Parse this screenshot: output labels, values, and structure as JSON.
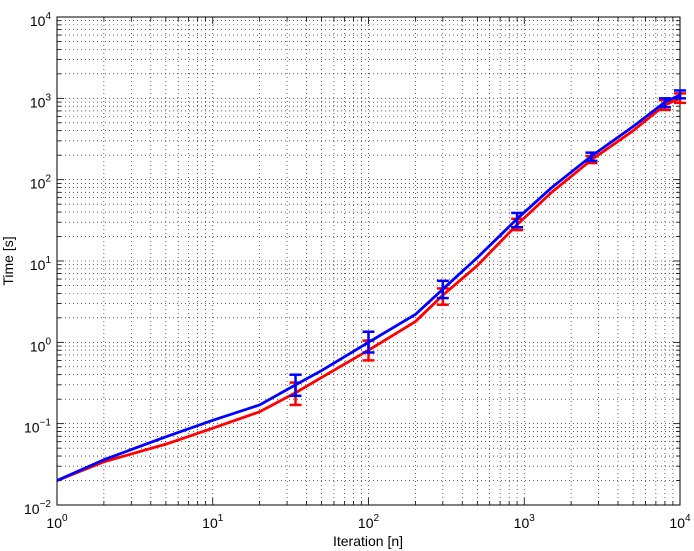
{
  "chart_data": {
    "type": "line",
    "xlabel": "Iteration [n]",
    "ylabel": "Time [s]",
    "xscale": "log",
    "yscale": "log",
    "grid": true,
    "minor_grid": true,
    "xlim": [
      1,
      10000
    ],
    "ylim": [
      0.01,
      10000
    ],
    "xticks": [
      {
        "value": 1,
        "label": "10",
        "exponent": "0"
      },
      {
        "value": 10,
        "label": "10",
        "exponent": "1"
      },
      {
        "value": 100,
        "label": "10",
        "exponent": "2"
      },
      {
        "value": 1000,
        "label": "10",
        "exponent": "3"
      },
      {
        "value": 10000,
        "label": "10",
        "exponent": "4"
      }
    ],
    "yticks": [
      {
        "value": 0.01,
        "label": "10",
        "exponent": "−2"
      },
      {
        "value": 0.1,
        "label": "10",
        "exponent": "−1"
      },
      {
        "value": 1,
        "label": "10",
        "exponent": "0"
      },
      {
        "value": 10,
        "label": "10",
        "exponent": "1"
      },
      {
        "value": 100,
        "label": "10",
        "exponent": "2"
      },
      {
        "value": 1000,
        "label": "10",
        "exponent": "3"
      },
      {
        "value": 10000,
        "label": "10",
        "exponent": "4"
      }
    ],
    "x": [
      1,
      2,
      5,
      10,
      20,
      34,
      50,
      100,
      200,
      300,
      500,
      900,
      1500,
      2700,
      5000,
      8000,
      10000
    ],
    "series": [
      {
        "color": "#ff0000",
        "values": [
          0.02,
          0.034,
          0.056,
          0.088,
          0.14,
          0.24,
          0.37,
          0.8,
          1.8,
          3.8,
          8.8,
          28,
          70,
          175,
          400,
          830,
          1000
        ],
        "err_low": [
          null,
          null,
          null,
          null,
          null,
          0.17,
          null,
          0.6,
          null,
          2.9,
          null,
          24,
          null,
          160,
          null,
          720,
          880
        ],
        "err_high": [
          null,
          null,
          null,
          null,
          null,
          0.32,
          null,
          1.05,
          null,
          4.6,
          null,
          33,
          null,
          195,
          null,
          950,
          1150
        ]
      },
      {
        "color": "#0000ff",
        "values": [
          0.02,
          0.036,
          0.069,
          0.11,
          0.17,
          0.3,
          0.45,
          1.0,
          2.2,
          4.5,
          11,
          33,
          80,
          195,
          450,
          900,
          1100
        ],
        "err_low": [
          null,
          null,
          null,
          null,
          null,
          0.22,
          null,
          0.75,
          null,
          3.5,
          null,
          26,
          null,
          170,
          null,
          780,
          1000
        ],
        "err_high": [
          null,
          null,
          null,
          null,
          null,
          0.4,
          null,
          1.35,
          null,
          5.7,
          null,
          39,
          null,
          215,
          null,
          1000,
          1250
        ]
      }
    ]
  }
}
